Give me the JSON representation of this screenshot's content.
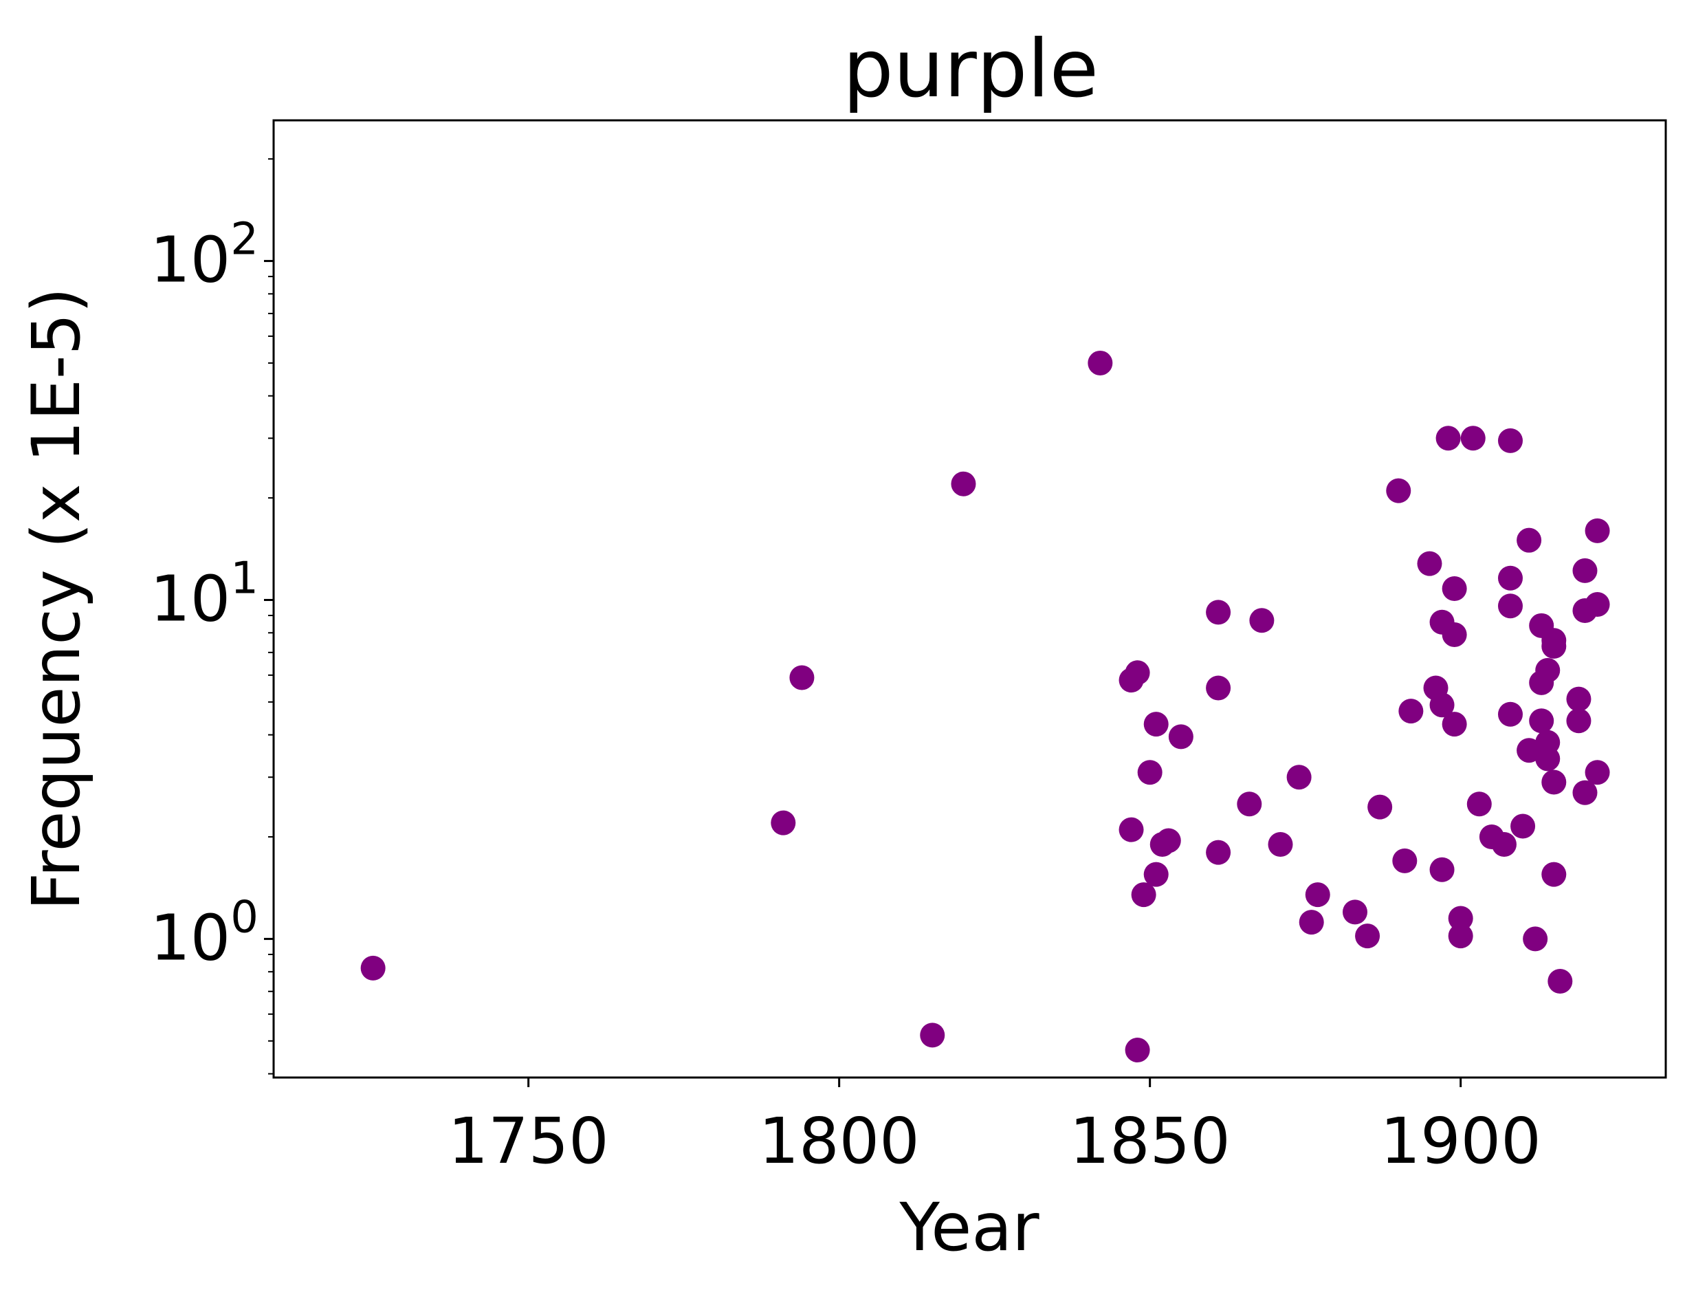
{
  "chart_data": {
    "type": "scatter",
    "title": "purple",
    "xlabel": "Year",
    "ylabel": "Frequency (x 1E-5)",
    "x_ticks": [
      {
        "value": 1750,
        "label": "1750"
      },
      {
        "value": 1800,
        "label": "1800"
      },
      {
        "value": 1850,
        "label": "1850"
      },
      {
        "value": 1900,
        "label": "1900"
      }
    ],
    "y_ticks": [
      {
        "value": 1,
        "base": "10",
        "exp": "0"
      },
      {
        "value": 10,
        "base": "10",
        "exp": "1"
      },
      {
        "value": 100,
        "base": "10",
        "exp": "2"
      }
    ],
    "xlim": [
      1709,
      1933
    ],
    "ylim": [
      0.39,
      260
    ],
    "y_scale": "log",
    "grid": false,
    "marker_color": "#800080",
    "x": [
      1725,
      1791,
      1794,
      1815,
      1820,
      1842,
      1847,
      1847,
      1848,
      1848,
      1849,
      1850,
      1851,
      1851,
      1852,
      1853,
      1855,
      1861,
      1861,
      1861,
      1866,
      1868,
      1871,
      1874,
      1876,
      1877,
      1883,
      1885,
      1887,
      1890,
      1891,
      1892,
      1895,
      1896,
      1897,
      1897,
      1897,
      1898,
      1899,
      1899,
      1899,
      1900,
      1900,
      1902,
      1903,
      1905,
      1907,
      1908,
      1908,
      1908,
      1908,
      1910,
      1911,
      1911,
      1912,
      1913,
      1913,
      1913,
      1914,
      1914,
      1914,
      1915,
      1915,
      1915,
      1915,
      1916,
      1919,
      1919,
      1920,
      1920,
      1920,
      1922,
      1922,
      1922
    ],
    "y": [
      0.82,
      2.2,
      5.9,
      0.52,
      22,
      50,
      5.8,
      2.1,
      6.1,
      0.47,
      1.35,
      3.1,
      4.3,
      1.55,
      1.9,
      1.95,
      3.95,
      9.2,
      5.5,
      1.8,
      2.5,
      8.7,
      1.9,
      3.0,
      1.12,
      1.35,
      1.2,
      1.02,
      2.45,
      21,
      1.7,
      4.7,
      12.8,
      5.5,
      8.6,
      4.9,
      1.6,
      30,
      10.8,
      7.9,
      4.3,
      1.15,
      1.02,
      30,
      2.5,
      2.0,
      1.9,
      29.5,
      11.6,
      9.6,
      4.6,
      2.15,
      15,
      3.6,
      1.0,
      8.4,
      5.7,
      4.4,
      6.2,
      3.8,
      3.4,
      7.6,
      7.3,
      2.9,
      1.55,
      0.75,
      5.1,
      4.4,
      2.7,
      12.2,
      9.3,
      16,
      9.7,
      3.1
    ]
  }
}
